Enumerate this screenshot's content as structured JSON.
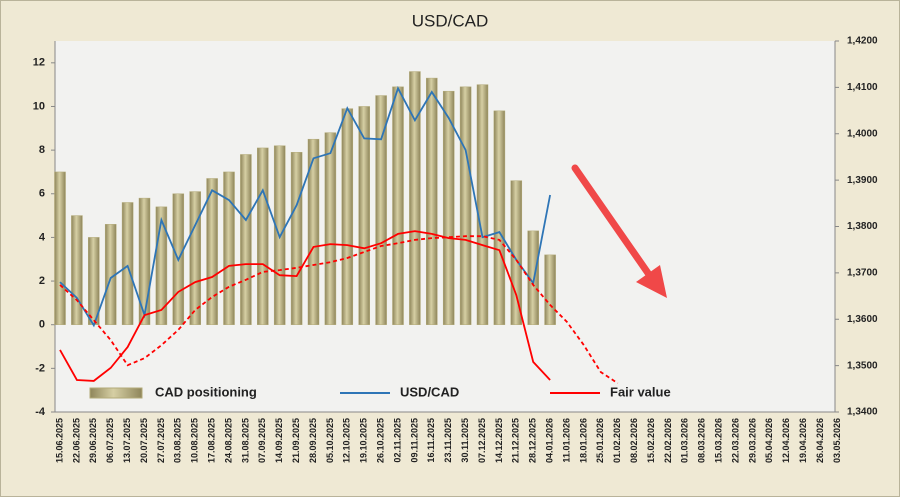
{
  "chart_data": {
    "type": "bar",
    "title": "USD/CAD",
    "categories": [
      "15.06.2025",
      "22.06.2025",
      "29.06.2025",
      "06.07.2025",
      "13.07.2025",
      "20.07.2025",
      "27.07.2025",
      "03.08.2025",
      "10.08.2025",
      "17.08.2025",
      "24.08.2025",
      "31.08.2025",
      "07.09.2025",
      "14.09.2025",
      "21.09.2025",
      "28.09.2025",
      "05.10.2025",
      "12.10.2025",
      "19.10.2025",
      "26.10.2025",
      "02.11.2025",
      "09.11.2025",
      "16.11.2025",
      "23.11.2025",
      "30.11.2025",
      "07.12.2025",
      "14.12.2025",
      "21.12.2025",
      "28.12.2025",
      "04.01.2026",
      "11.01.2026",
      "18.01.2026",
      "25.01.2026",
      "01.02.2026",
      "08.02.2026",
      "15.02.2026",
      "22.02.2026",
      "01.03.2026",
      "08.03.2026",
      "15.03.2026",
      "22.03.2026",
      "29.03.2026",
      "05.04.2026",
      "12.04.2026",
      "19.04.2026",
      "26.04.2026",
      "03.05.2026"
    ],
    "series": [
      {
        "name": "CAD positioning",
        "type": "bar",
        "color": "#b3aa78",
        "axis": "y",
        "values": [
          7.0,
          5.0,
          4.0,
          4.6,
          5.6,
          5.8,
          5.4,
          6.0,
          6.1,
          6.7,
          7.0,
          7.8,
          8.1,
          8.2,
          7.9,
          8.5,
          8.8,
          9.9,
          10.0,
          10.5,
          10.9,
          11.6,
          11.3,
          10.7,
          10.9,
          11.0,
          9.8,
          6.6,
          4.3,
          3.2,
          null,
          null,
          null,
          null,
          null,
          null,
          null,
          null,
          null,
          null,
          null,
          null,
          null,
          null,
          null,
          null,
          null
        ]
      },
      {
        "name": "USD/CAD",
        "type": "line",
        "color": "#2e75b6",
        "axis": "y2",
        "values": [
          1.368,
          1.3646,
          1.3587,
          1.3689,
          1.3715,
          1.3609,
          1.3814,
          1.3728,
          1.3803,
          1.3878,
          1.3857,
          1.3814,
          1.3878,
          1.3777,
          1.3846,
          1.3947,
          1.3958,
          1.4055,
          1.399,
          1.3988,
          1.4098,
          1.4029,
          1.409,
          1.4034,
          1.3965,
          1.3777,
          1.3788,
          1.3728,
          1.3678,
          1.3868,
          null,
          null,
          null,
          null,
          null,
          null,
          null,
          null,
          null,
          null,
          null,
          null,
          null,
          null,
          null,
          null,
          null
        ]
      },
      {
        "name": "Fair value",
        "type": "line",
        "color": "#ff0000",
        "axis": "y2",
        "values": [
          1.3534,
          1.3469,
          1.3467,
          1.3495,
          1.354,
          1.3609,
          1.362,
          1.3659,
          1.368,
          1.3691,
          1.3715,
          1.3719,
          1.3719,
          1.3695,
          1.3693,
          1.3756,
          1.3762,
          1.376,
          1.3753,
          1.3764,
          1.3784,
          1.379,
          1.3784,
          1.3775,
          1.3771,
          1.376,
          1.3749,
          1.3652,
          1.3508,
          1.3469,
          null,
          null,
          null,
          null,
          null,
          null,
          null,
          null,
          null,
          null,
          null,
          null,
          null,
          null,
          null,
          null,
          null
        ]
      },
      {
        "type": "line",
        "color": "#ff0000",
        "dash": true,
        "axis": "y2",
        "values": [
          1.3674,
          1.3641,
          1.3598,
          1.3555,
          1.3501,
          1.3516,
          1.3544,
          1.3577,
          1.362,
          1.3648,
          1.367,
          1.3685,
          1.3702,
          1.3706,
          1.3711,
          1.3717,
          1.3723,
          1.3732,
          1.3745,
          1.3758,
          1.3764,
          1.3771,
          1.3775,
          1.3777,
          1.3779,
          1.3779,
          1.3771,
          1.3728,
          1.3674,
          1.3631,
          1.3594,
          1.3544,
          1.3486,
          1.3462,
          null,
          null,
          null,
          null,
          null,
          null,
          null,
          null,
          null,
          null,
          null,
          null,
          null
        ]
      }
    ],
    "ylim": [
      -4,
      13
    ],
    "yticks": [
      -4,
      -2,
      0,
      2,
      4,
      6,
      8,
      10,
      12
    ],
    "y2lim": [
      1.34,
      1.42
    ],
    "y2ticks": [
      {
        "value": 1.34,
        "label": "1,3400"
      },
      {
        "value": 1.35,
        "label": "1,3500"
      },
      {
        "value": 1.36,
        "label": "1,3600"
      },
      {
        "value": 1.37,
        "label": "1,3700"
      },
      {
        "value": 1.38,
        "label": "1,3800"
      },
      {
        "value": 1.39,
        "label": "1,3900"
      },
      {
        "value": 1.4,
        "label": "1,4000"
      },
      {
        "value": 1.41,
        "label": "1,4100"
      },
      {
        "value": 1.42,
        "label": "1,4200"
      }
    ],
    "legend": "bottom"
  }
}
